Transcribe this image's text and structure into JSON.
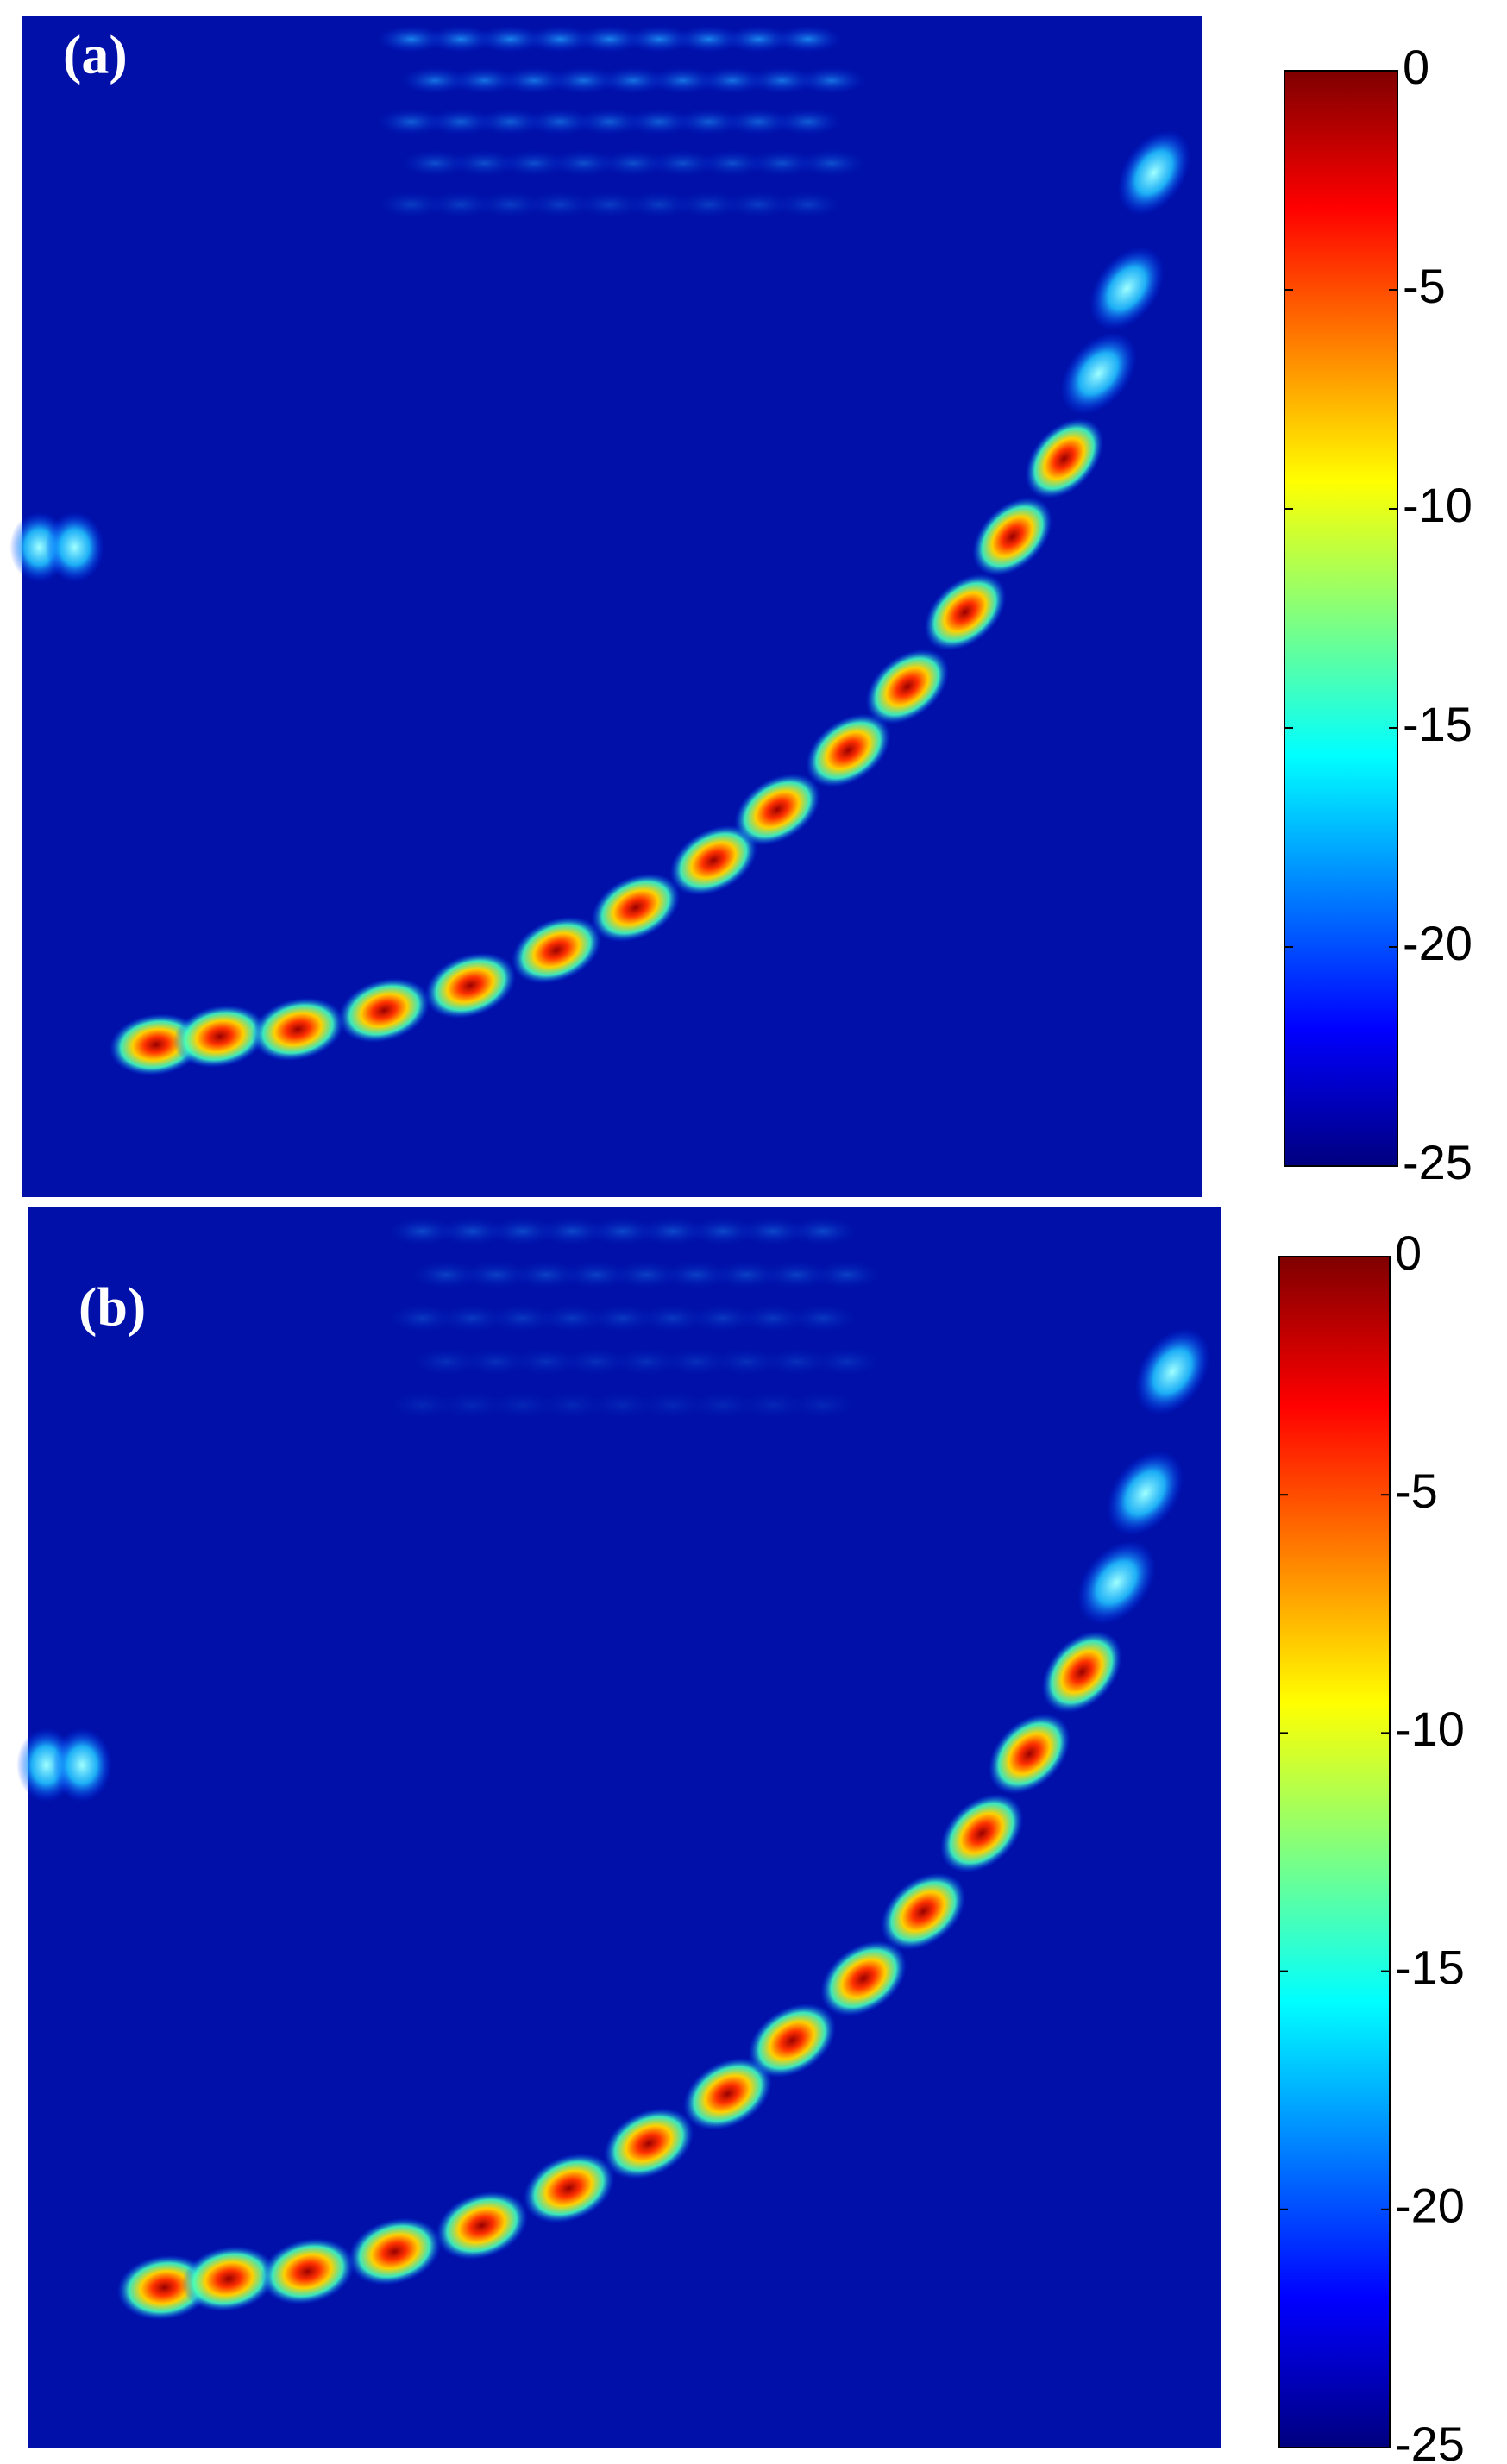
{
  "chart_data": [
    {
      "type": "image",
      "panel_label": "(a)",
      "colorbar_lim": [
        -25,
        0
      ],
      "colorbar_ticks": [
        0,
        -5,
        -10,
        -15,
        -20,
        -25
      ]
    },
    {
      "type": "image",
      "panel_label": "(b)",
      "colorbar_lim": [
        -25,
        0
      ],
      "colorbar_ticks": [
        0,
        -5,
        -10,
        -15,
        -20,
        -25
      ]
    }
  ]
}
